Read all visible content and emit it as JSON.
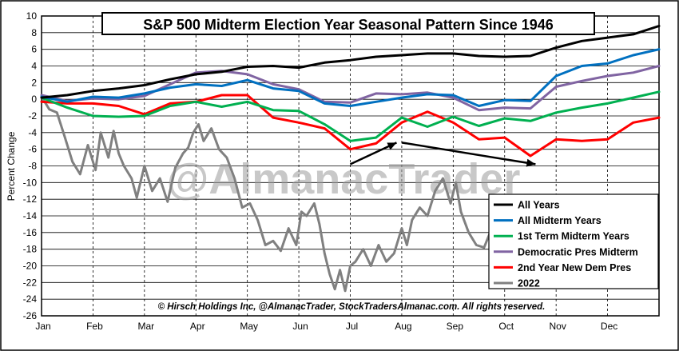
{
  "chart_data": {
    "type": "line",
    "title": "S&P 500 Midterm Election Year Seasonal Pattern Since 1946",
    "watermark": "@AlmanacTrader",
    "footer": "© Hirsch Holdings Inc, @AlmanacTrader, StockTradersAlmanac.com. All rights reserved.",
    "ylabel": "Percent Change",
    "xlabel": "",
    "ylim": [
      -26,
      10
    ],
    "yticks": [
      10,
      8,
      6,
      4,
      2,
      0,
      -2,
      -4,
      -6,
      -8,
      -10,
      -12,
      -14,
      -16,
      -18,
      -20,
      -22,
      -24,
      -26
    ],
    "xlim": [
      0,
      12
    ],
    "months": [
      "Jan",
      "Feb",
      "Mar",
      "Apr",
      "May",
      "Jun",
      "Jul",
      "Aug",
      "Sep",
      "Oct",
      "Nov",
      "Dec"
    ],
    "grid": true,
    "legend_position": "bottom-right",
    "series": [
      {
        "name": "All Years",
        "color": "#000000",
        "points": [
          [
            0,
            0.2
          ],
          [
            0.5,
            0.5
          ],
          [
            1,
            1.0
          ],
          [
            1.5,
            1.3
          ],
          [
            2,
            1.7
          ],
          [
            2.5,
            2.4
          ],
          [
            3,
            3.0
          ],
          [
            3.5,
            3.3
          ],
          [
            4,
            3.9
          ],
          [
            4.5,
            4.0
          ],
          [
            5,
            3.8
          ],
          [
            5.5,
            4.4
          ],
          [
            6,
            4.7
          ],
          [
            6.5,
            5.1
          ],
          [
            7,
            5.3
          ],
          [
            7.5,
            5.5
          ],
          [
            8,
            5.5
          ],
          [
            8.5,
            5.2
          ],
          [
            9,
            5.1
          ],
          [
            9.5,
            5.2
          ],
          [
            10,
            6.2
          ],
          [
            10.5,
            7.0
          ],
          [
            11,
            7.4
          ],
          [
            11.5,
            7.8
          ],
          [
            12,
            8.8
          ]
        ]
      },
      {
        "name": "All Midterm Years",
        "color": "#0070C0",
        "points": [
          [
            0,
            0.3
          ],
          [
            0.5,
            -0.3
          ],
          [
            1,
            0.3
          ],
          [
            1.5,
            0.2
          ],
          [
            2,
            0.7
          ],
          [
            2.5,
            1.4
          ],
          [
            3,
            1.8
          ],
          [
            3.5,
            1.6
          ],
          [
            4,
            2.3
          ],
          [
            4.5,
            1.3
          ],
          [
            5,
            1.0
          ],
          [
            5.5,
            -0.5
          ],
          [
            6,
            -0.8
          ],
          [
            6.5,
            -0.3
          ],
          [
            7,
            0.2
          ],
          [
            7.5,
            0.6
          ],
          [
            8,
            0.5
          ],
          [
            8.5,
            -0.8
          ],
          [
            9,
            -0.1
          ],
          [
            9.5,
            -0.2
          ],
          [
            10,
            2.8
          ],
          [
            10.5,
            4.0
          ],
          [
            11,
            4.3
          ],
          [
            11.5,
            5.3
          ],
          [
            12,
            6.0
          ]
        ]
      },
      {
        "name": "1st Term Midterm Years",
        "color": "#00B050",
        "points": [
          [
            0,
            0.2
          ],
          [
            0.5,
            -1.0
          ],
          [
            1,
            -2.0
          ],
          [
            1.5,
            -2.1
          ],
          [
            2,
            -2.0
          ],
          [
            2.5,
            -0.8
          ],
          [
            3,
            -0.3
          ],
          [
            3.5,
            -0.9
          ],
          [
            4,
            -0.3
          ],
          [
            4.5,
            -1.3
          ],
          [
            5,
            -1.4
          ],
          [
            5.5,
            -3.0
          ],
          [
            6,
            -5.0
          ],
          [
            6.5,
            -4.6
          ],
          [
            7,
            -2.2
          ],
          [
            7.5,
            -3.3
          ],
          [
            8,
            -2.1
          ],
          [
            8.5,
            -3.2
          ],
          [
            9,
            -2.3
          ],
          [
            9.5,
            -2.6
          ],
          [
            10,
            -1.6
          ],
          [
            10.5,
            -1.0
          ],
          [
            11,
            -0.5
          ],
          [
            11.5,
            0.2
          ],
          [
            12,
            0.9
          ]
        ]
      },
      {
        "name": "Democratic Pres Midterm",
        "color": "#8064A2",
        "points": [
          [
            0,
            0.5
          ],
          [
            0.5,
            -0.2
          ],
          [
            1,
            0.1
          ],
          [
            1.5,
            0.0
          ],
          [
            2,
            0.4
          ],
          [
            2.5,
            1.8
          ],
          [
            3,
            3.2
          ],
          [
            3.5,
            3.4
          ],
          [
            4,
            3.0
          ],
          [
            4.5,
            1.8
          ],
          [
            5,
            1.2
          ],
          [
            5.5,
            -0.3
          ],
          [
            6,
            -0.4
          ],
          [
            6.5,
            0.7
          ],
          [
            7,
            0.6
          ],
          [
            7.5,
            0.8
          ],
          [
            8,
            0.2
          ],
          [
            8.5,
            -1.3
          ],
          [
            9,
            -1.0
          ],
          [
            9.5,
            -1.1
          ],
          [
            10,
            1.5
          ],
          [
            10.5,
            2.2
          ],
          [
            11,
            2.8
          ],
          [
            11.5,
            3.2
          ],
          [
            12,
            4.0
          ]
        ]
      },
      {
        "name": "2nd Year New Dem Pres",
        "color": "#FF0000",
        "points": [
          [
            0,
            -0.3
          ],
          [
            0.5,
            -0.5
          ],
          [
            1,
            -0.5
          ],
          [
            1.5,
            -0.8
          ],
          [
            2,
            -1.8
          ],
          [
            2.5,
            -0.5
          ],
          [
            3,
            -0.3
          ],
          [
            3.5,
            0.5
          ],
          [
            4,
            0.5
          ],
          [
            4.5,
            -2.2
          ],
          [
            5,
            -2.8
          ],
          [
            5.5,
            -3.5
          ],
          [
            6,
            -6.0
          ],
          [
            6.5,
            -5.3
          ],
          [
            7,
            -2.8
          ],
          [
            7.5,
            -1.5
          ],
          [
            8,
            -2.8
          ],
          [
            8.5,
            -4.8
          ],
          [
            9,
            -4.6
          ],
          [
            9.5,
            -6.8
          ],
          [
            10,
            -4.8
          ],
          [
            10.5,
            -5.0
          ],
          [
            11,
            -4.8
          ],
          [
            11.5,
            -2.8
          ],
          [
            12,
            -2.2
          ]
        ]
      },
      {
        "name": "2022",
        "color": "#808080",
        "points": [
          [
            0,
            0.3
          ],
          [
            0.15,
            -1.2
          ],
          [
            0.3,
            -1.6
          ],
          [
            0.45,
            -4.5
          ],
          [
            0.6,
            -7.5
          ],
          [
            0.75,
            -9.0
          ],
          [
            0.9,
            -5.5
          ],
          [
            1.05,
            -8.5
          ],
          [
            1.15,
            -4.0
          ],
          [
            1.3,
            -7.0
          ],
          [
            1.4,
            -3.8
          ],
          [
            1.5,
            -6.5
          ],
          [
            1.6,
            -8.0
          ],
          [
            1.75,
            -9.5
          ],
          [
            1.85,
            -11.8
          ],
          [
            2.0,
            -8.0
          ],
          [
            2.15,
            -11.0
          ],
          [
            2.3,
            -9.5
          ],
          [
            2.45,
            -12.3
          ],
          [
            2.6,
            -8.2
          ],
          [
            2.75,
            -6.5
          ],
          [
            2.85,
            -5.8
          ],
          [
            2.95,
            -4.0
          ],
          [
            3.05,
            -3.0
          ],
          [
            3.15,
            -5.0
          ],
          [
            3.3,
            -3.5
          ],
          [
            3.45,
            -6.0
          ],
          [
            3.6,
            -7.0
          ],
          [
            3.75,
            -9.5
          ],
          [
            3.9,
            -13.0
          ],
          [
            4.05,
            -12.5
          ],
          [
            4.2,
            -14.5
          ],
          [
            4.35,
            -17.5
          ],
          [
            4.5,
            -17.0
          ],
          [
            4.65,
            -18.2
          ],
          [
            4.8,
            -15.5
          ],
          [
            4.95,
            -17.5
          ],
          [
            5.05,
            -13.5
          ],
          [
            5.15,
            -14.0
          ],
          [
            5.3,
            -12.5
          ],
          [
            5.4,
            -15.0
          ],
          [
            5.5,
            -18.5
          ],
          [
            5.6,
            -21.0
          ],
          [
            5.7,
            -22.8
          ],
          [
            5.8,
            -20.5
          ],
          [
            5.9,
            -23.0
          ],
          [
            6.0,
            -20.0
          ],
          [
            6.1,
            -19.5
          ],
          [
            6.25,
            -18.0
          ],
          [
            6.4,
            -20.0
          ],
          [
            6.55,
            -17.5
          ],
          [
            6.7,
            -19.5
          ],
          [
            6.85,
            -18.5
          ],
          [
            7.0,
            -15.5
          ],
          [
            7.1,
            -17.5
          ],
          [
            7.2,
            -14.5
          ],
          [
            7.35,
            -13.0
          ],
          [
            7.5,
            -14.0
          ],
          [
            7.65,
            -11.0
          ],
          [
            7.8,
            -9.5
          ],
          [
            7.95,
            -12.5
          ],
          [
            8.05,
            -10.0
          ],
          [
            8.15,
            -13.5
          ],
          [
            8.3,
            -16.0
          ],
          [
            8.45,
            -17.5
          ],
          [
            8.6,
            -17.8
          ],
          [
            8.75,
            -15.5
          ],
          [
            8.85,
            -13.5
          ],
          [
            8.95,
            -17.5
          ]
        ]
      }
    ],
    "annotations": [
      {
        "type": "arrow",
        "from": [
          6.0,
          -7.8
        ],
        "to": [
          6.9,
          -5.2
        ]
      },
      {
        "type": "arrow",
        "from": [
          7.0,
          -5.2
        ],
        "to": [
          9.6,
          -7.8
        ]
      }
    ]
  }
}
